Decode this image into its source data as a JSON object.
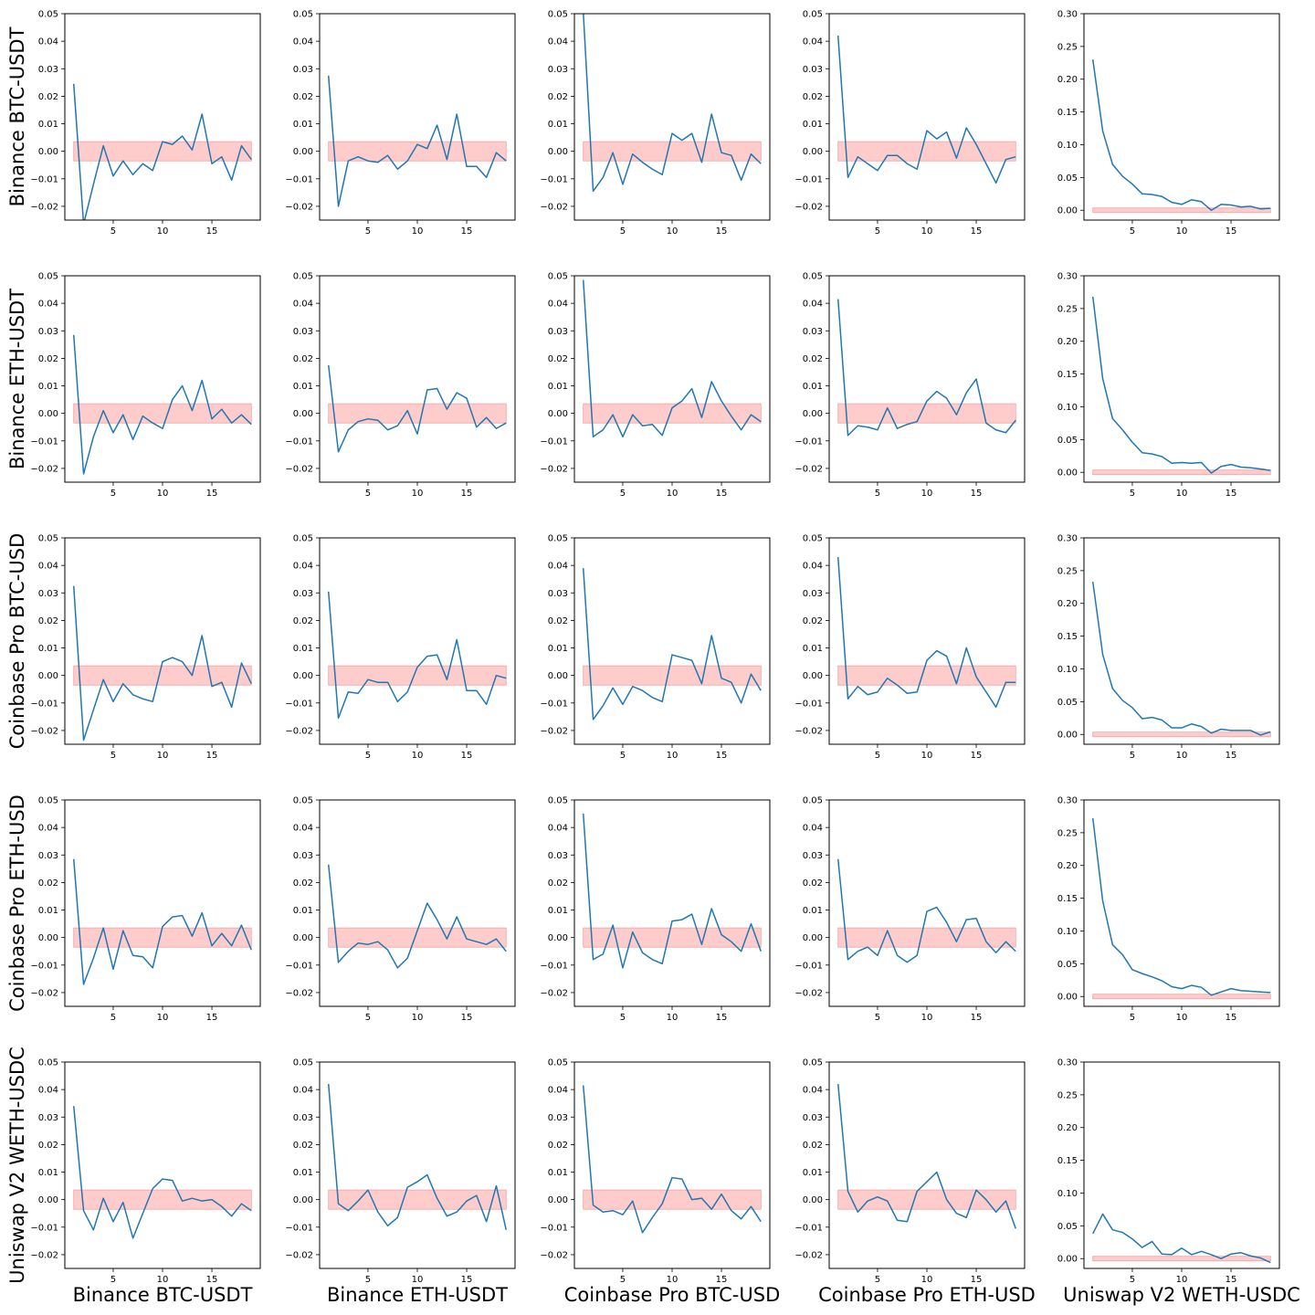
{
  "row_labels": [
    "Binance BTC-USDT",
    "Binance ETH-USDT",
    "Coinbase Pro BTC-USD",
    "Coinbase Pro ETH-USD",
    "Uniswap V2 WETH-USDC"
  ],
  "col_labels": [
    "Binance BTC-USDT",
    "Binance ETH-USDT",
    "Coinbase Pro BTC-USD",
    "Coinbase Pro ETH-USD",
    "Uniswap V2 WETH-USDC"
  ],
  "colors": {
    "line": "#1f77b4",
    "band_fill": "#ffcccc",
    "band_edge": "#f4a0a0"
  },
  "chart_data": {
    "type": "line",
    "x": [
      1,
      2,
      3,
      4,
      5,
      6,
      7,
      8,
      9,
      10,
      11,
      12,
      13,
      14,
      15,
      16,
      17,
      18,
      19
    ],
    "xticks": [
      5,
      10,
      15
    ],
    "xlim": [
      0.1,
      19.9
    ],
    "band": [
      -0.0035,
      0.0035
    ],
    "panel_types": {
      "standard": {
        "ylim": [
          -0.025,
          0.05
        ],
        "yticks": [
          -0.02,
          -0.01,
          0.0,
          0.01,
          0.02,
          0.03,
          0.04,
          0.05
        ],
        "ytick_labels": [
          "−0.02",
          "−0.01",
          "0.00",
          "0.01",
          "0.02",
          "0.03",
          "0.04",
          "0.05"
        ]
      },
      "uniswap": {
        "ylim": [
          -0.015,
          0.3
        ],
        "yticks": [
          0.0,
          0.05,
          0.1,
          0.15,
          0.2,
          0.25,
          0.3
        ],
        "ytick_labels": [
          "0.00",
          "0.05",
          "0.10",
          "0.15",
          "0.20",
          "0.25",
          "0.30"
        ]
      }
    },
    "series": [
      [
        [
          0.0245,
          -0.0265,
          -0.012,
          0.002,
          -0.009,
          -0.0035,
          -0.0085,
          -0.0045,
          -0.007,
          0.0035,
          0.0025,
          0.0055,
          0.0005,
          0.0135,
          -0.0045,
          -0.002,
          -0.0105,
          0.002,
          -0.003
        ],
        [
          0.0275,
          -0.02,
          -0.0035,
          -0.002,
          -0.0035,
          -0.004,
          -0.0015,
          -0.0065,
          -0.0035,
          0.0025,
          0.001,
          0.0095,
          -0.003,
          0.0135,
          -0.0055,
          -0.0055,
          -0.0095,
          -0.0005,
          -0.0035
        ],
        [
          0.0505,
          -0.0145,
          -0.0095,
          -0.0005,
          -0.012,
          -0.001,
          -0.004,
          -0.0065,
          -0.0085,
          0.0065,
          0.004,
          0.0065,
          -0.004,
          0.0135,
          -0.0005,
          -0.0015,
          -0.0105,
          -0.001,
          -0.0045
        ],
        [
          0.042,
          -0.0095,
          -0.002,
          -0.0045,
          -0.007,
          -0.0015,
          -0.0015,
          -0.0045,
          -0.0065,
          0.0075,
          0.0045,
          0.007,
          -0.0025,
          0.0085,
          0.0025,
          -0.0045,
          -0.0115,
          -0.003,
          -0.002
        ],
        [
          0.23,
          0.121,
          0.07,
          0.052,
          0.04,
          0.025,
          0.024,
          0.021,
          0.012,
          0.009,
          0.016,
          0.013,
          0.0,
          0.009,
          0.008,
          0.005,
          0.006,
          0.002,
          0.003
        ]
      ],
      [
        [
          0.0285,
          -0.022,
          -0.0085,
          0.001,
          -0.007,
          -0.0005,
          -0.0095,
          -0.001,
          -0.0035,
          -0.0055,
          0.005,
          0.01,
          0.001,
          0.012,
          -0.002,
          0.0015,
          -0.0035,
          -0.0005,
          -0.004
        ],
        [
          0.0175,
          -0.014,
          -0.006,
          -0.003,
          -0.002,
          -0.0025,
          -0.006,
          -0.0045,
          0.001,
          -0.0075,
          0.0085,
          0.009,
          0.0015,
          0.0075,
          0.0055,
          -0.005,
          -0.0015,
          -0.0055,
          -0.0035
        ],
        [
          0.0485,
          -0.0085,
          -0.006,
          -0.0005,
          -0.0085,
          -0.0005,
          -0.0045,
          -0.004,
          -0.008,
          0.002,
          0.0045,
          0.009,
          -0.0015,
          0.0115,
          0.0045,
          -0.001,
          -0.006,
          -0.0005,
          -0.003
        ],
        [
          0.0415,
          -0.008,
          -0.0045,
          -0.005,
          -0.006,
          0.002,
          -0.0055,
          -0.004,
          -0.003,
          0.0045,
          0.008,
          0.0055,
          -0.0005,
          0.0075,
          0.0125,
          -0.0035,
          -0.006,
          -0.007,
          -0.0025
        ],
        [
          0.268,
          0.143,
          0.082,
          0.065,
          0.046,
          0.03,
          0.028,
          0.024,
          0.014,
          0.015,
          0.014,
          0.015,
          -0.001,
          0.009,
          0.012,
          0.008,
          0.007,
          0.005,
          0.003
        ]
      ],
      [
        [
          0.0325,
          -0.0235,
          -0.0125,
          -0.0015,
          -0.0095,
          -0.003,
          -0.007,
          -0.0085,
          -0.0095,
          0.005,
          0.0065,
          0.005,
          0.0,
          0.0145,
          -0.004,
          -0.0025,
          -0.0115,
          0.0045,
          -0.003
        ],
        [
          0.0305,
          -0.0155,
          -0.006,
          -0.0065,
          -0.0015,
          -0.0025,
          -0.0025,
          -0.0095,
          -0.006,
          0.003,
          0.007,
          0.0075,
          -0.0015,
          0.013,
          -0.0055,
          -0.0055,
          -0.0105,
          0.0,
          -0.001
        ],
        [
          0.039,
          -0.016,
          -0.011,
          -0.0045,
          -0.0105,
          -0.004,
          -0.0055,
          -0.008,
          -0.0095,
          0.0075,
          0.0065,
          0.0055,
          -0.003,
          0.0145,
          -0.001,
          -0.0025,
          -0.01,
          0.0005,
          -0.0055
        ],
        [
          0.043,
          -0.0085,
          -0.004,
          -0.007,
          -0.006,
          -0.001,
          -0.0035,
          -0.0065,
          -0.006,
          0.0055,
          0.009,
          0.007,
          -0.003,
          0.01,
          -0.0005,
          -0.006,
          -0.0115,
          -0.0025,
          -0.0025
        ],
        [
          0.233,
          0.122,
          0.07,
          0.052,
          0.041,
          0.024,
          0.026,
          0.022,
          0.01,
          0.01,
          0.016,
          0.012,
          0.002,
          0.008,
          0.006,
          0.006,
          0.006,
          -0.001,
          0.004
        ]
      ],
      [
        [
          0.0285,
          -0.017,
          -0.0075,
          0.0035,
          -0.0115,
          0.0025,
          -0.0065,
          -0.007,
          -0.011,
          0.004,
          0.0075,
          0.008,
          0.0005,
          0.009,
          -0.003,
          0.0015,
          -0.003,
          0.0045,
          -0.0045
        ],
        [
          0.0265,
          -0.009,
          -0.005,
          -0.002,
          -0.0025,
          -0.0015,
          -0.0045,
          -0.011,
          -0.0075,
          0.0025,
          0.0125,
          0.0065,
          -0.0005,
          0.0075,
          -0.0005,
          -0.0015,
          -0.0025,
          -0.0005,
          -0.005
        ],
        [
          0.045,
          -0.008,
          -0.006,
          0.0045,
          -0.011,
          0.002,
          -0.0055,
          -0.008,
          -0.0095,
          0.006,
          0.0065,
          0.0085,
          -0.0025,
          0.0105,
          0.001,
          -0.0015,
          -0.005,
          0.005,
          -0.005
        ],
        [
          0.0285,
          -0.008,
          -0.005,
          -0.0035,
          -0.0065,
          0.0025,
          -0.0065,
          -0.009,
          -0.0065,
          0.0095,
          0.011,
          0.0055,
          -0.0015,
          0.0065,
          0.007,
          -0.0015,
          -0.0055,
          -0.0015,
          -0.005
        ],
        [
          0.272,
          0.146,
          0.079,
          0.064,
          0.041,
          0.035,
          0.03,
          0.024,
          0.015,
          0.012,
          0.017,
          0.014,
          0.002,
          0.007,
          0.012,
          0.009,
          0.008,
          0.007,
          0.006
        ]
      ],
      [
        [
          0.034,
          -0.004,
          -0.011,
          0.0005,
          -0.008,
          -0.001,
          -0.014,
          -0.005,
          0.004,
          0.0075,
          0.007,
          -0.0005,
          0.0005,
          -0.0005,
          0.0,
          -0.0025,
          -0.006,
          -0.0015,
          -0.004
        ],
        [
          0.042,
          -0.0015,
          -0.004,
          -0.0005,
          0.0035,
          -0.0045,
          -0.0095,
          -0.0065,
          0.0045,
          0.0065,
          0.009,
          0.0005,
          -0.006,
          -0.0045,
          -0.0005,
          0.0015,
          -0.008,
          0.005,
          -0.011
        ],
        [
          0.0415,
          -0.002,
          -0.0045,
          -0.004,
          -0.0055,
          -0.0005,
          -0.012,
          -0.0065,
          -0.0015,
          0.008,
          0.0075,
          0.0,
          0.0005,
          -0.0035,
          0.002,
          -0.004,
          -0.007,
          -0.0025,
          -0.008
        ],
        [
          0.042,
          0.003,
          -0.0045,
          -0.0005,
          0.001,
          -0.0005,
          -0.0075,
          -0.008,
          0.003,
          0.0065,
          0.01,
          0.0,
          -0.005,
          -0.0065,
          0.0035,
          0.0,
          -0.0045,
          -0.0005,
          -0.0105
        ],
        [
          0.038,
          0.068,
          0.044,
          0.04,
          0.03,
          0.017,
          0.026,
          0.007,
          0.006,
          0.016,
          0.006,
          0.011,
          0.006,
          0.0,
          0.007,
          0.009,
          0.004,
          0.001,
          -0.006
        ]
      ]
    ]
  }
}
